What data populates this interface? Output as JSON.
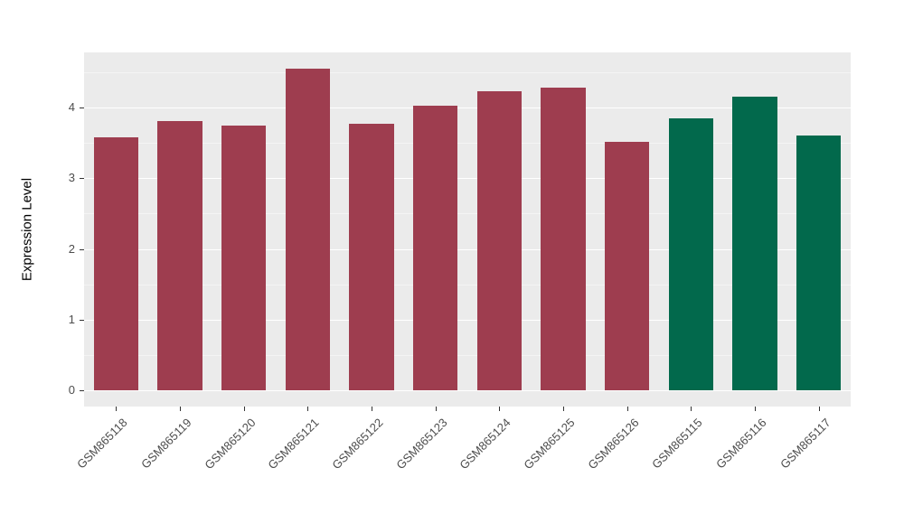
{
  "chart_data": {
    "type": "bar",
    "title": "",
    "xlabel": "",
    "ylabel": "Expression Level",
    "categories": [
      "GSM865118",
      "GSM865119",
      "GSM865120",
      "GSM865121",
      "GSM865122",
      "GSM865123",
      "GSM865124",
      "GSM865125",
      "GSM865126",
      "GSM865115",
      "GSM865116",
      "GSM865117"
    ],
    "values": [
      3.58,
      3.81,
      3.74,
      4.55,
      3.77,
      4.02,
      4.23,
      4.28,
      3.52,
      3.85,
      4.16,
      3.61
    ],
    "colors": [
      "#9e3d4f",
      "#9e3d4f",
      "#9e3d4f",
      "#9e3d4f",
      "#9e3d4f",
      "#9e3d4f",
      "#9e3d4f",
      "#9e3d4f",
      "#9e3d4f",
      "#02694c",
      "#02694c",
      "#02694c"
    ],
    "group_colors": {
      "group1": "#9e3d4f",
      "group2": "#02694c"
    },
    "ylim": [
      -0.23,
      4.78
    ],
    "yticks": [
      0,
      1,
      2,
      3,
      4
    ],
    "minor_yticks": [
      0.5,
      1.5,
      2.5,
      3.5,
      4.5
    ],
    "grid": true,
    "legend_position": "none",
    "panel_background": "#ebebeb",
    "grid_color": "#ffffff",
    "tick_label_color": "#4d4d4d",
    "bar_width_ratio": 0.7,
    "x_label_angle": 45
  }
}
